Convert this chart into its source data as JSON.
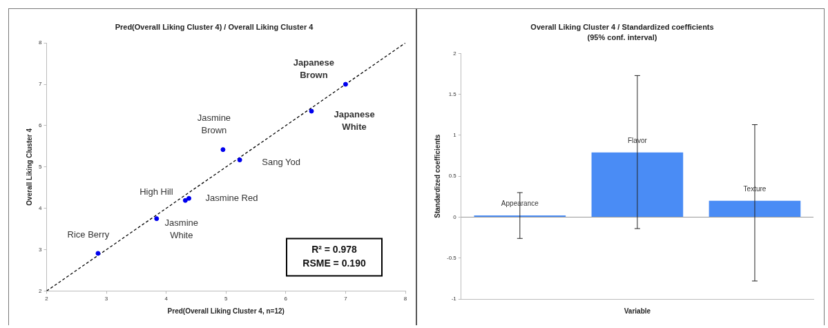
{
  "chart_data": [
    {
      "type": "scatter",
      "title": "Pred(Overall Liking Cluster 4) / Overall Liking Cluster 4",
      "xlabel": "Pred(Overall Liking Cluster 4, n=12)",
      "ylabel": "Overall Liking Cluster 4",
      "grid": false,
      "xlim": [
        2,
        8
      ],
      "ylim": [
        2,
        8
      ],
      "xticks": [
        2,
        3,
        4,
        5,
        6,
        7,
        8
      ],
      "yticks": [
        2,
        3,
        4,
        5,
        6,
        7,
        8
      ],
      "series": [
        {
          "type": "scatter",
          "color": "#0000ee",
          "marker": "circle",
          "x": [
            7.0,
            6.43,
            4.95,
            5.23,
            4.32,
            4.38,
            3.84,
            2.86
          ],
          "values": [
            7.0,
            6.35,
            5.42,
            5.17,
            4.19,
            4.24,
            3.75,
            2.91
          ]
        },
        {
          "type": "line",
          "color": "#000000",
          "line_style": "dashed",
          "marker": "none",
          "x": [
            2,
            8
          ],
          "values": [
            2,
            8
          ]
        }
      ],
      "annotations": [
        {
          "text": "Japanese Brown",
          "x": 7.0,
          "y": 7.0
        },
        {
          "text": "Japanese White",
          "x": 6.43,
          "y": 6.35
        },
        {
          "text": "Jasmine Brown",
          "x": 4.95,
          "y": 5.42
        },
        {
          "text": "Sang Yod",
          "x": 5.23,
          "y": 5.17
        },
        {
          "text": "High Hill",
          "x": 4.32,
          "y": 4.19
        },
        {
          "text": "Jasmine Red",
          "x": 4.38,
          "y": 4.24
        },
        {
          "text": "Jasmine White",
          "x": 3.84,
          "y": 3.75
        },
        {
          "text": "Rice Berry",
          "x": 2.86,
          "y": 2.91
        },
        "R² = 0.978",
        "RSME = 0.190"
      ]
    },
    {
      "type": "bar",
      "title": "Overall Liking Cluster 4 / Standardized coefficients",
      "subtitle": "(95% conf. interval)",
      "xlabel": "Variable",
      "ylabel": "Standardized coefficients",
      "categories": [
        null,
        null,
        null
      ],
      "values": [
        0.02,
        0.79,
        0.2
      ],
      "annotations": [
        {
          "text": "Appearance",
          "y": 0.02
        },
        {
          "text": "Flavor",
          "y": 0.79
        },
        {
          "text": "Texture",
          "y": 0.2
        }
      ],
      "ref_lines": [
        {
          "axis": "y",
          "value": 0,
          "color": "#999999"
        }
      ],
      "color": "#4a8cf5",
      "errors": [
        [
          -0.26,
          0.3
        ],
        [
          -0.14,
          1.73
        ],
        [
          -0.78,
          1.13
        ]
      ],
      "ylim": [
        -1,
        2
      ],
      "yticks": [
        -1,
        -0.5,
        0,
        0.5,
        1,
        1.5,
        2
      ],
      "grid": false,
      "tick_labels": "y"
    }
  ]
}
